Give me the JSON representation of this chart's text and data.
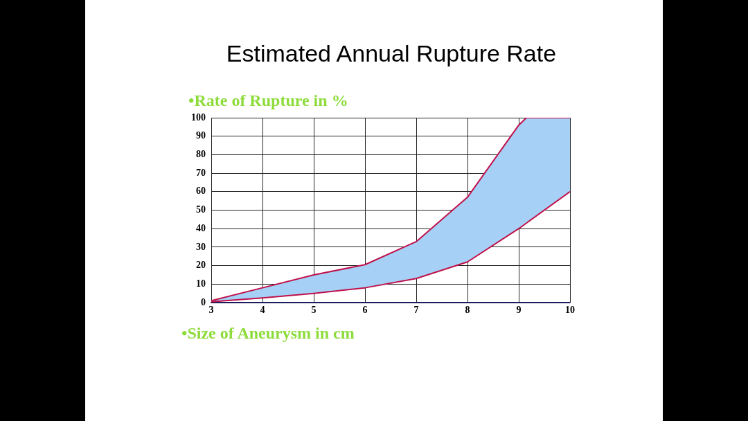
{
  "chart_data": {
    "type": "line",
    "title": "Estimated Annual Rupture Rate",
    "ylabel": "•Rate of Rupture in %",
    "xlabel": "•Size of Aneurysm in cm",
    "series": [
      {
        "type": "line",
        "color": "#c0104a",
        "x": [
          3,
          4,
          5,
          6,
          7,
          8,
          9,
          10
        ],
        "values": [
          0.5,
          2.5,
          5,
          8,
          13,
          22,
          40,
          60
        ]
      },
      {
        "type": "area",
        "color": "#a6d0f5",
        "x": [
          3,
          4,
          5,
          6,
          7,
          8,
          9,
          9.15,
          10
        ],
        "values": [
          1,
          8,
          15,
          20.5,
          33,
          57,
          96,
          100,
          100
        ]
      },
      {
        "type": "line",
        "color": "#c0104a",
        "x": [
          3,
          4,
          5,
          6,
          7,
          8,
          9,
          9.15,
          10
        ],
        "values": [
          1,
          8,
          15,
          20.5,
          33,
          57,
          96,
          100,
          100
        ]
      }
    ],
    "xlim": [
      3,
      10
    ],
    "xticks": [
      3,
      4,
      5,
      6,
      7,
      8,
      9,
      10
    ],
    "ylim": [
      0,
      100
    ],
    "yticks": [
      0,
      10,
      20,
      30,
      40,
      50,
      60,
      70,
      80,
      90,
      100
    ],
    "grid": true,
    "legend": false,
    "marker": "none"
  }
}
